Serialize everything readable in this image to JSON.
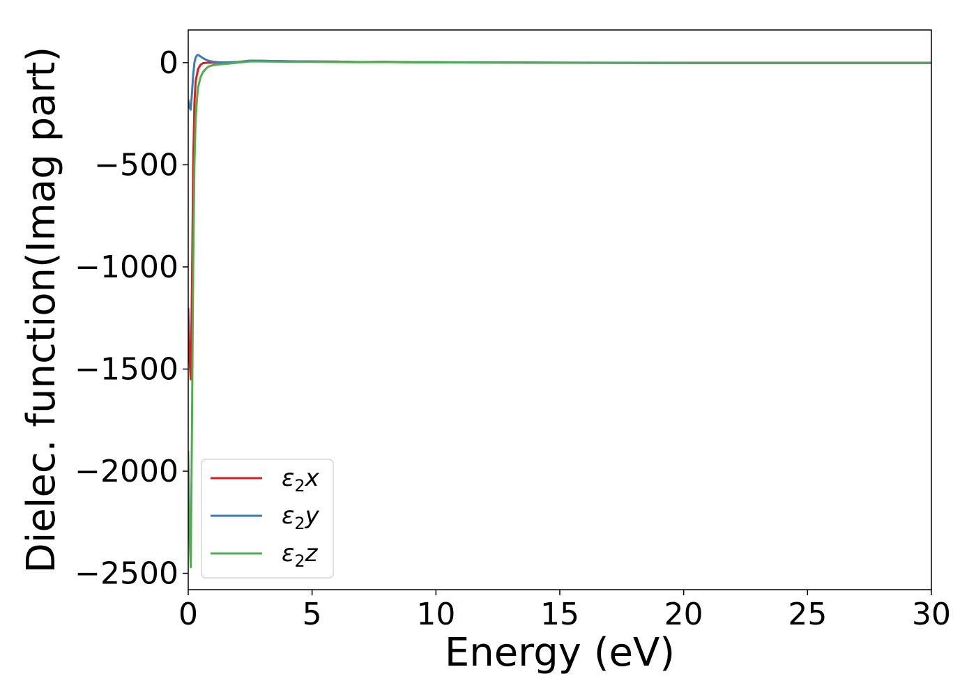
{
  "chart_data": {
    "type": "line",
    "title": "",
    "xlabel": "Energy (eV)",
    "ylabel": "Dielec. function(Imag part)",
    "xlim": [
      0,
      30
    ],
    "ylim": [
      -2580,
      160
    ],
    "xticks": [
      0,
      5,
      10,
      15,
      20,
      25,
      30
    ],
    "yticks": [
      0,
      -500,
      -1000,
      -1500,
      -2000,
      -2500
    ],
    "xtick_labels": [
      "0",
      "5",
      "10",
      "15",
      "20",
      "25",
      "30"
    ],
    "ytick_labels": [
      "0",
      "−500",
      "−1000",
      "−1500",
      "−2000",
      "−2500"
    ],
    "grid": false,
    "legend_position": "bottom-left",
    "series": [
      {
        "name": "ε₂x",
        "legend_main": "ε",
        "legend_sub": "2",
        "legend_tail": "x",
        "color": "#e41a1c",
        "x": [
          0.0,
          0.05,
          0.1,
          0.15,
          0.2,
          0.25,
          0.3,
          0.4,
          0.5,
          0.6,
          0.8,
          1.0,
          1.5,
          2.0,
          2.5,
          3.0,
          3.5,
          4.0,
          5.0,
          6.0,
          7.0,
          8.0,
          9.0,
          10.0,
          12.0,
          15.0,
          20.0,
          25.0,
          30.0
        ],
        "y": [
          -1200,
          -1450,
          -1550,
          -1100,
          -500,
          -200,
          -90,
          -30,
          -10,
          -2,
          0,
          0,
          1,
          3,
          10,
          9,
          8,
          7,
          6,
          5,
          3,
          4,
          2,
          2,
          1,
          0,
          -1,
          -1,
          -1
        ]
      },
      {
        "name": "ε₂y",
        "legend_main": "ε",
        "legend_sub": "2",
        "legend_tail": "y",
        "color": "#377eb8",
        "x": [
          0.0,
          0.05,
          0.1,
          0.15,
          0.2,
          0.25,
          0.3,
          0.35,
          0.4,
          0.5,
          0.6,
          0.7,
          0.8,
          1.0,
          1.2,
          1.5,
          2.0,
          2.5,
          3.0,
          3.5,
          4.0,
          5.0,
          6.0,
          7.0,
          8.0,
          9.0,
          10.0,
          12.0,
          15.0,
          20.0,
          25.0,
          30.0
        ],
        "y": [
          -180,
          -220,
          -230,
          -150,
          -60,
          0,
          25,
          35,
          38,
          30,
          22,
          15,
          10,
          5,
          2,
          1,
          3,
          10,
          9,
          8,
          7,
          6,
          5,
          3,
          4,
          2,
          2,
          1,
          0,
          -1,
          -1,
          -1
        ]
      },
      {
        "name": "ε₂z",
        "legend_main": "ε",
        "legend_sub": "2",
        "legend_tail": "z",
        "color": "#4daf4a",
        "x": [
          0.0,
          0.05,
          0.1,
          0.15,
          0.2,
          0.25,
          0.3,
          0.35,
          0.4,
          0.5,
          0.6,
          0.8,
          1.0,
          1.5,
          2.0,
          2.5,
          3.0,
          3.5,
          4.0,
          5.0,
          6.0,
          7.0,
          8.0,
          9.0,
          10.0,
          12.0,
          15.0,
          20.0,
          25.0,
          30.0
        ],
        "y": [
          -1900,
          -2300,
          -2470,
          -1800,
          -1000,
          -500,
          -280,
          -180,
          -120,
          -70,
          -45,
          -20,
          -12,
          -6,
          0,
          6,
          6,
          5,
          4,
          4,
          3,
          2,
          3,
          1,
          1,
          0,
          -1,
          -2,
          -2,
          -2
        ]
      }
    ]
  }
}
